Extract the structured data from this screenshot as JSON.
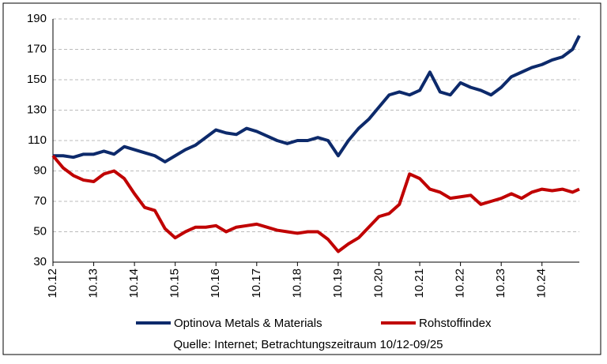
{
  "chart_data": {
    "type": "line",
    "x": [
      "10.12",
      "01.13",
      "04.13",
      "07.13",
      "10.13",
      "01.14",
      "04.14",
      "07.14",
      "10.14",
      "01.15",
      "04.15",
      "07.15",
      "10.15",
      "01.16",
      "04.16",
      "07.16",
      "10.16",
      "01.17",
      "04.17",
      "07.17",
      "10.17",
      "01.18",
      "04.18",
      "07.18",
      "10.18",
      "01.19",
      "04.19",
      "07.19",
      "10.19",
      "01.20",
      "04.20",
      "07.20",
      "10.20",
      "01.21",
      "04.21",
      "07.21",
      "10.21",
      "01.22",
      "04.22",
      "07.22",
      "10.22",
      "01.23",
      "04.23",
      "07.23",
      "10.23",
      "01.24",
      "04.24",
      "07.24",
      "10.24",
      "01.25",
      "04.25",
      "07.25",
      "09.25"
    ],
    "series": [
      {
        "name": "Optinova Metals & Materials",
        "color": "#0d2a6b",
        "values": [
          100,
          100,
          99,
          101,
          101,
          103,
          101,
          106,
          104,
          102,
          100,
          96,
          100,
          104,
          107,
          112,
          117,
          115,
          114,
          118,
          116,
          113,
          110,
          108,
          110,
          110,
          112,
          110,
          100,
          110,
          118,
          124,
          132,
          140,
          142,
          140,
          143,
          155,
          142,
          140,
          148,
          145,
          143,
          140,
          145,
          152,
          155,
          158,
          160,
          163,
          165,
          170,
          179
        ]
      },
      {
        "name": "Rohstoffindex",
        "color": "#c00000",
        "values": [
          100,
          92,
          87,
          84,
          83,
          88,
          90,
          85,
          75,
          66,
          64,
          52,
          46,
          50,
          53,
          53,
          54,
          50,
          53,
          54,
          55,
          53,
          51,
          50,
          49,
          50,
          50,
          45,
          37,
          42,
          46,
          53,
          60,
          62,
          68,
          88,
          85,
          78,
          76,
          72,
          73,
          74,
          68,
          70,
          72,
          75,
          72,
          76,
          78,
          77,
          78,
          76,
          78
        ]
      }
    ],
    "xlim": [
      "10.12",
      "09.25"
    ],
    "xticks": [
      "10.12",
      "10.13",
      "10.14",
      "10.15",
      "10.16",
      "10.17",
      "10.18",
      "10.19",
      "10.20",
      "10.21",
      "10.22",
      "10.23",
      "10.24"
    ],
    "ylim": [
      30,
      190
    ],
    "yticks": [
      30,
      50,
      70,
      90,
      110,
      130,
      150,
      170,
      190
    ],
    "grid": true,
    "legend": "bottom",
    "source": "Quelle: Internet; Betrachtungszeitraum 10/12-09/25"
  }
}
